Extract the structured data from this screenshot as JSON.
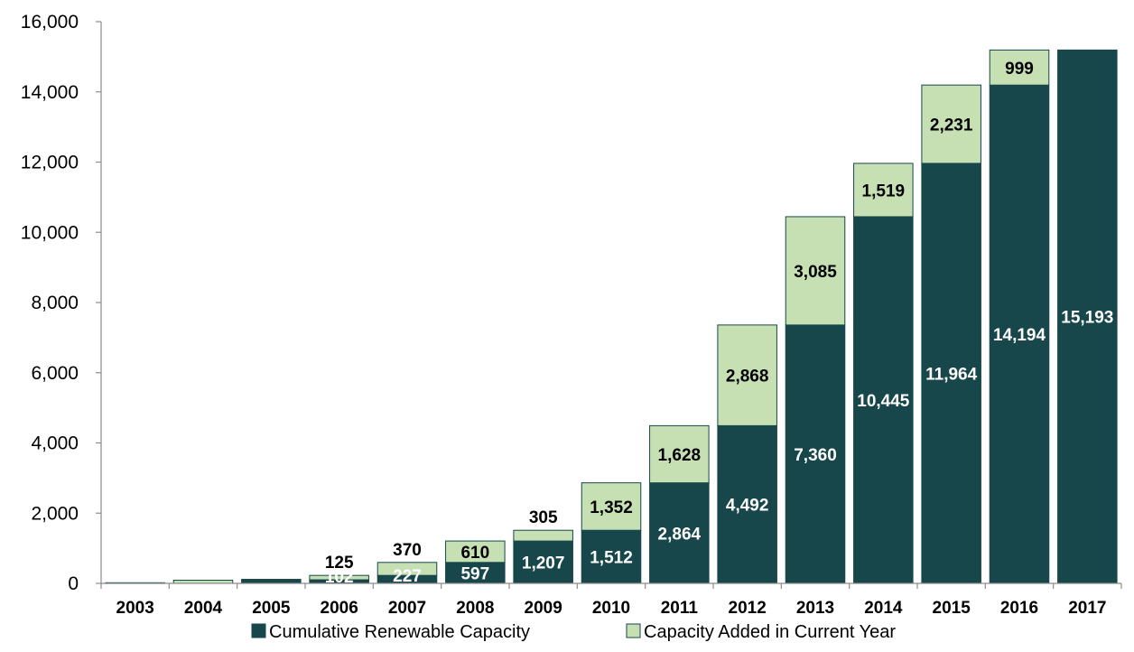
{
  "chart_data": {
    "type": "bar",
    "stacked": true,
    "categories": [
      "2003",
      "2004",
      "2005",
      "2006",
      "2007",
      "2008",
      "2009",
      "2010",
      "2011",
      "2012",
      "2013",
      "2014",
      "2015",
      "2016",
      "2017"
    ],
    "series": [
      {
        "name": "Cumulative Renewable Capacity",
        "color": "#17474a",
        "values": [
          0,
          0,
          0,
          102,
          227,
          597,
          1207,
          1512,
          2864,
          4492,
          7360,
          10445,
          11964,
          14194,
          15193
        ],
        "labels": [
          "",
          "",
          "",
          "102",
          "227",
          "597",
          "1,207",
          "1,512",
          "2,864",
          "4,492",
          "7,360",
          "10,445",
          "11,964",
          "14,194",
          "15,193"
        ]
      },
      {
        "name": "Capacity Added in Current Year",
        "color": "#c6e0b4",
        "values": [
          0,
          0,
          0,
          125,
          370,
          610,
          305,
          1352,
          1628,
          2868,
          3085,
          1519,
          2231,
          999,
          0
        ],
        "labels": [
          "",
          "",
          "",
          "125",
          "370",
          "610",
          "305",
          "1,352",
          "1,628",
          "2,868",
          "3,085",
          "1,519",
          "2,231",
          "999",
          ""
        ]
      }
    ],
    "yticks": [
      "0",
      "2,000",
      "4,000",
      "6,000",
      "8,000",
      "10,000",
      "12,000",
      "14,000",
      "16,000"
    ],
    "ylim": [
      0,
      16000
    ],
    "grid": false,
    "legend": "bottom"
  }
}
